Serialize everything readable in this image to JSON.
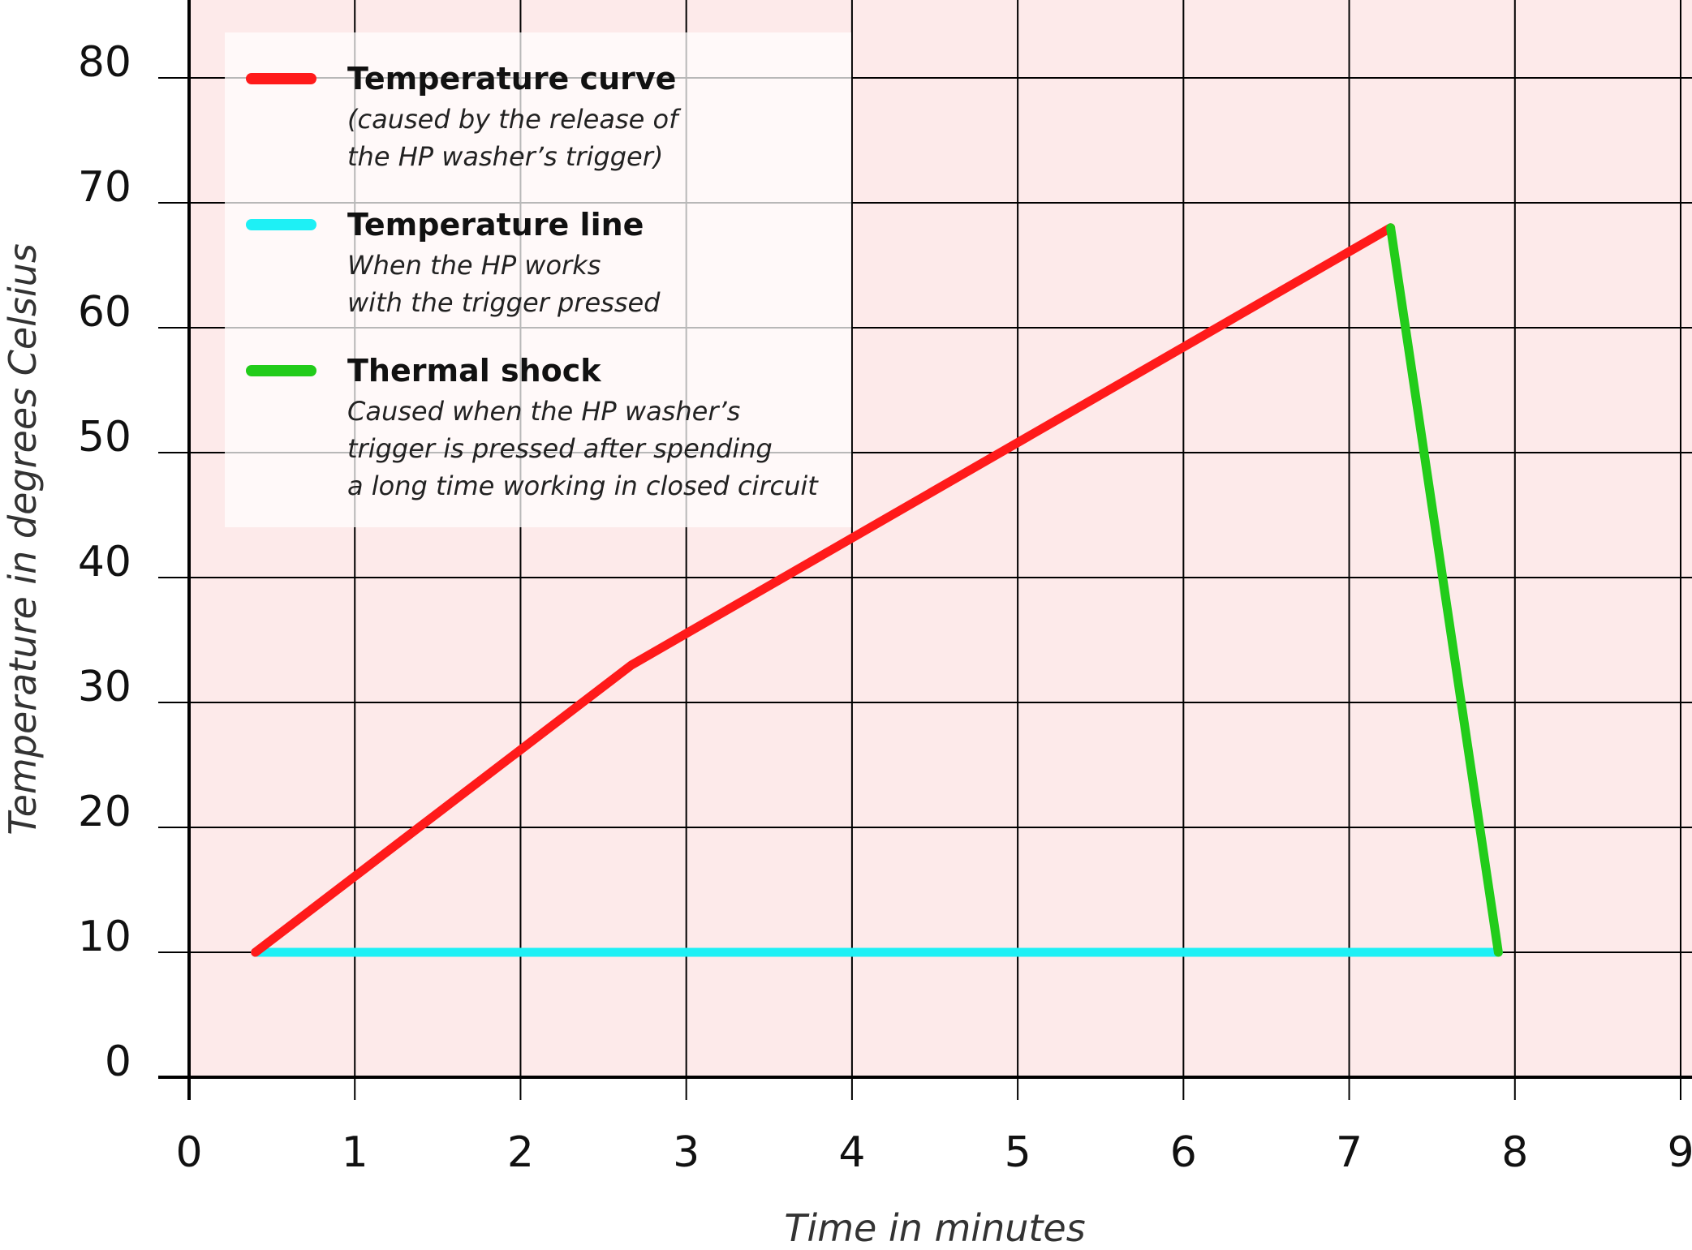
{
  "chart_data": {
    "type": "line",
    "xlabel": "Time in minutes",
    "ylabel": "Temperature in degrees Celsius",
    "xlim": [
      0,
      9
    ],
    "ylim": [
      0,
      80
    ],
    "xticks": [
      "0",
      "1",
      "2",
      "3",
      "4",
      "5",
      "6",
      "7",
      "8",
      "9"
    ],
    "yticks": [
      "0",
      "10",
      "20",
      "30",
      "40",
      "50",
      "60",
      "70",
      "80"
    ],
    "grid": true,
    "background_color": "#fdeaea",
    "legend_position": "top-left",
    "series": [
      {
        "name": "Temperature curve",
        "description": [
          "(caused by the release of",
          "the HP washer’s trigger)"
        ],
        "color": "#ff1a1a",
        "points": [
          {
            "x": 0.4,
            "y": 10
          },
          {
            "x": 2.67,
            "y": 33
          },
          {
            "x": 7.25,
            "y": 68
          }
        ]
      },
      {
        "name": "Temperature line",
        "description": [
          "When the HP works",
          "with the trigger pressed"
        ],
        "color": "#1ef0f5",
        "points": [
          {
            "x": 0.4,
            "y": 10
          },
          {
            "x": 7.9,
            "y": 10
          }
        ]
      },
      {
        "name": "Thermal shock",
        "description": [
          "Caused when the HP washer’s",
          "trigger is pressed after spending",
          "a long time working in closed circuit"
        ],
        "color": "#22cc1a",
        "points": [
          {
            "x": 7.25,
            "y": 68
          },
          {
            "x": 7.9,
            "y": 10
          }
        ]
      }
    ]
  }
}
